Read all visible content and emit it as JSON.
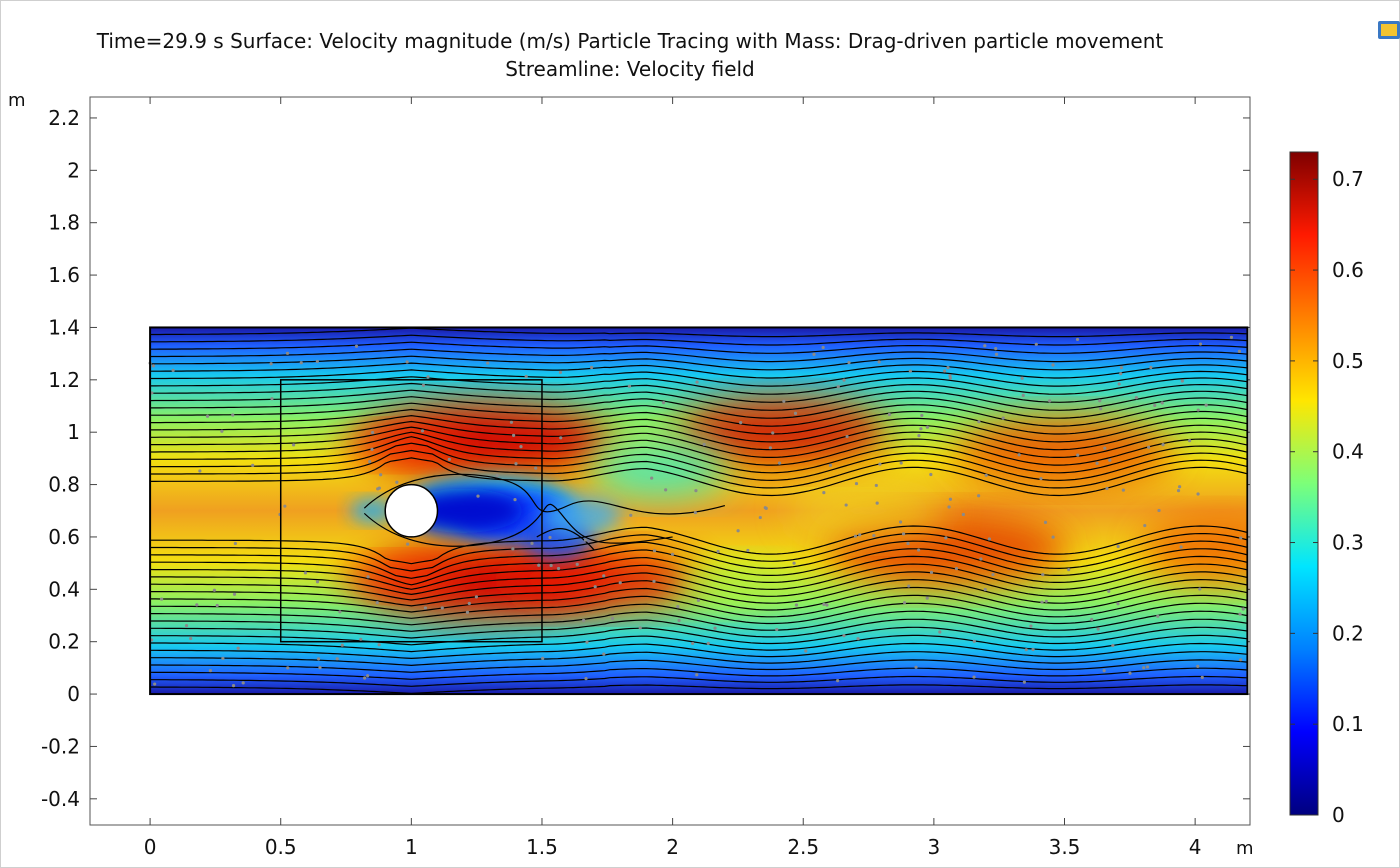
{
  "title_line1": "Time=29.9 s Surface: Velocity magnitude (m/s) Particle Tracing with Mass: Drag-driven particle movement",
  "title_line2": "Streamline: Velocity field",
  "toolbar_icon": "image-snapshot-icon",
  "chart_data": {
    "type": "heatmap",
    "x_unit": "m",
    "y_unit": "m",
    "xlim": [
      -0.23,
      4.21
    ],
    "ylim": [
      -0.5,
      2.28
    ],
    "x_ticks": [
      "0",
      "0.5",
      "1",
      "1.5",
      "2",
      "2.5",
      "3",
      "3.5",
      "4"
    ],
    "y_ticks": [
      "-0.4",
      "-0.2",
      "0",
      "0.2",
      "0.4",
      "0.6",
      "0.8",
      "1",
      "1.2",
      "1.4",
      "1.6",
      "1.8",
      "2",
      "2.2"
    ],
    "domain": {
      "x": [
        0,
        4.2
      ],
      "y": [
        0,
        1.4
      ]
    },
    "cylinder": {
      "center": [
        1.0,
        0.7
      ],
      "radius": 0.1
    },
    "refinement_box": {
      "x": [
        0.5,
        1.5
      ],
      "y": [
        0.2,
        1.2
      ]
    },
    "colorbar": {
      "range": [
        0,
        0.73
      ],
      "ticks": [
        "0",
        "0.1",
        "0.2",
        "0.3",
        "0.4",
        "0.5",
        "0.6",
        "0.7"
      ],
      "colormap": "jet"
    }
  }
}
